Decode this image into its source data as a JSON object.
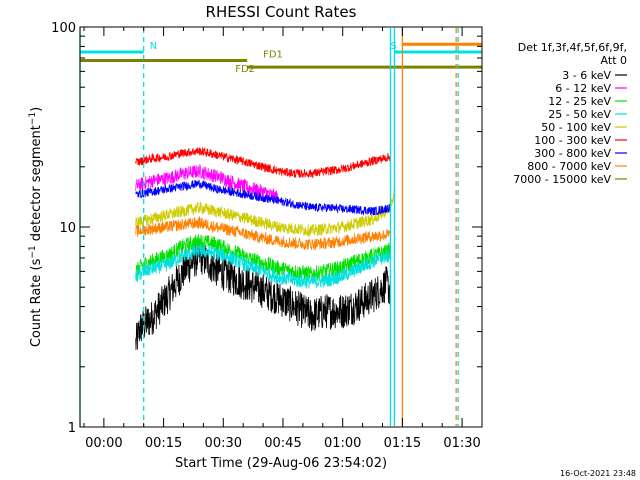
{
  "chart_data": {
    "type": "line",
    "title": "RHESSI Count Rates",
    "xlabel": "Start Time (29-Aug-06 23:54:02)",
    "ylabel": "Count Rate (s",
    "ylabel_sup": "−1",
    "ylabel_tail": " detector segment",
    "ylabel_sup2": "−1",
    "ylabel_end": ")",
    "yscale": "log",
    "ylim": [
      1,
      100
    ],
    "y_ticks": [
      {
        "v": 1,
        "label": "1"
      },
      {
        "v": 10,
        "label": "10"
      },
      {
        "v": 100,
        "label": "100"
      }
    ],
    "xlim_min": [
      -6,
      95
    ],
    "x_ticks": [
      {
        "m": 0,
        "label": "00:00"
      },
      {
        "m": 15,
        "label": "00:15"
      },
      {
        "m": 30,
        "label": "00:30"
      },
      {
        "m": 45,
        "label": "00:45"
      },
      {
        "m": 60,
        "label": "01:00"
      },
      {
        "m": 75,
        "label": "01:15"
      },
      {
        "m": 90,
        "label": "01:30"
      }
    ],
    "legend_header": [
      "Det 1f,3f,4f,5f,6f,9f,",
      "Att 0"
    ],
    "series": [
      {
        "name": "3 - 6 keV",
        "color": "#000000",
        "noise": 0.09,
        "points": [
          [
            8,
            2.6
          ],
          [
            9,
            3.1
          ],
          [
            12,
            3.5
          ],
          [
            16,
            4.5
          ],
          [
            20,
            6.0
          ],
          [
            24,
            7.2
          ],
          [
            28,
            6.2
          ],
          [
            32,
            5.6
          ],
          [
            36,
            5.2
          ],
          [
            40,
            4.8
          ],
          [
            44,
            4.4
          ],
          [
            48,
            4.0
          ],
          [
            52,
            3.6
          ],
          [
            56,
            3.8
          ],
          [
            60,
            3.8
          ],
          [
            64,
            4.1
          ],
          [
            68,
            4.6
          ],
          [
            71,
            5.2
          ],
          [
            72,
            4.8
          ]
        ]
      },
      {
        "name": "6 - 12 keV",
        "color": "#ff00ff",
        "noise": 0.035,
        "points": [
          [
            8,
            16
          ],
          [
            12,
            17
          ],
          [
            16,
            17.5
          ],
          [
            20,
            18.5
          ],
          [
            24,
            19
          ],
          [
            28,
            18
          ],
          [
            30,
            17.5
          ],
          [
            35,
            16
          ],
          [
            40,
            15
          ],
          [
            44,
            14
          ]
        ]
      },
      {
        "name": "12 - 25 keV",
        "color": "#00e000",
        "noise": 0.04,
        "points": [
          [
            8,
            6.0
          ],
          [
            10,
            6.5
          ],
          [
            16,
            7.2
          ],
          [
            20,
            8.0
          ],
          [
            24,
            8.5
          ],
          [
            28,
            8.2
          ],
          [
            32,
            7.6
          ],
          [
            36,
            7.0
          ],
          [
            40,
            6.6
          ],
          [
            44,
            6.2
          ],
          [
            48,
            6.0
          ],
          [
            52,
            5.8
          ],
          [
            56,
            6.0
          ],
          [
            60,
            6.3
          ],
          [
            64,
            6.8
          ],
          [
            68,
            7.2
          ],
          [
            72,
            7.6
          ]
        ]
      },
      {
        "name": "25 - 50 keV",
        "color": "#00e0e0",
        "noise": 0.035,
        "points": [
          [
            8,
            5.6
          ],
          [
            10,
            6.0
          ],
          [
            16,
            6.5
          ],
          [
            20,
            7.2
          ],
          [
            24,
            7.6
          ],
          [
            28,
            7.4
          ],
          [
            32,
            7.0
          ],
          [
            36,
            6.4
          ],
          [
            40,
            6.0
          ],
          [
            44,
            5.6
          ],
          [
            48,
            5.4
          ],
          [
            52,
            5.3
          ],
          [
            56,
            5.4
          ],
          [
            60,
            5.7
          ],
          [
            64,
            6.2
          ],
          [
            68,
            6.8
          ],
          [
            72,
            7.2
          ]
        ]
      },
      {
        "name": "50 - 100 keV",
        "color": "#cccc00",
        "noise": 0.03,
        "points": [
          [
            8,
            10.5
          ],
          [
            12,
            11
          ],
          [
            16,
            11.5
          ],
          [
            20,
            12
          ],
          [
            24,
            12.5
          ],
          [
            28,
            12
          ],
          [
            32,
            11.5
          ],
          [
            36,
            11
          ],
          [
            40,
            10.5
          ],
          [
            44,
            10
          ],
          [
            48,
            9.8
          ],
          [
            52,
            9.6
          ],
          [
            56,
            9.8
          ],
          [
            60,
            10
          ],
          [
            64,
            10.5
          ],
          [
            68,
            11
          ],
          [
            72,
            12.5
          ],
          [
            73,
            15
          ]
        ]
      },
      {
        "name": "100 - 300 keV",
        "color": "#ff0000",
        "noise": 0.022,
        "points": [
          [
            8,
            21
          ],
          [
            12,
            22
          ],
          [
            16,
            22.5
          ],
          [
            20,
            23.5
          ],
          [
            24,
            24
          ],
          [
            28,
            23
          ],
          [
            32,
            22
          ],
          [
            36,
            21
          ],
          [
            40,
            20
          ],
          [
            44,
            19
          ],
          [
            48,
            18.5
          ],
          [
            52,
            18.5
          ],
          [
            56,
            19
          ],
          [
            60,
            19.5
          ],
          [
            64,
            20.5
          ],
          [
            68,
            21.5
          ],
          [
            72,
            22.5
          ]
        ]
      },
      {
        "name": "300 - 800 keV",
        "color": "#0000ff",
        "noise": 0.022,
        "points": [
          [
            8,
            14.5
          ],
          [
            12,
            15
          ],
          [
            16,
            15.5
          ],
          [
            20,
            16
          ],
          [
            24,
            16.5
          ],
          [
            28,
            15.5
          ],
          [
            32,
            15
          ],
          [
            36,
            14.5
          ],
          [
            40,
            14
          ],
          [
            44,
            13.5
          ],
          [
            48,
            13
          ],
          [
            52,
            12.5
          ],
          [
            56,
            12.5
          ],
          [
            60,
            12.3
          ],
          [
            64,
            12.2
          ],
          [
            68,
            12
          ],
          [
            72,
            12.5
          ]
        ]
      },
      {
        "name": "800 - 7000 keV",
        "color": "#ff8000",
        "noise": 0.03,
        "points": [
          [
            8,
            9.5
          ],
          [
            12,
            9.8
          ],
          [
            16,
            10
          ],
          [
            20,
            10.3
          ],
          [
            24,
            10.5
          ],
          [
            28,
            10
          ],
          [
            32,
            9.6
          ],
          [
            36,
            9.2
          ],
          [
            40,
            8.8
          ],
          [
            44,
            8.5
          ],
          [
            48,
            8.3
          ],
          [
            52,
            8.2
          ],
          [
            56,
            8.3
          ],
          [
            60,
            8.5
          ],
          [
            64,
            8.8
          ],
          [
            68,
            9.0
          ],
          [
            72,
            9.2
          ]
        ]
      },
      {
        "name": "7000 - 15000 keV",
        "color": "#808000",
        "noise": 0.0,
        "points": []
      }
    ],
    "attenuator_lines": [
      {
        "m": -6,
        "color": "#00e0e0"
      },
      {
        "m": 10,
        "color": "#00e0e0"
      },
      {
        "m": 72,
        "color": "#00e0e0"
      },
      {
        "m": 73,
        "color": "#00e0e0"
      },
      {
        "m": 75,
        "color": "#ff8000"
      },
      {
        "m": 88.5,
        "color": "#ff8000"
      },
      {
        "m": 89,
        "color": "#00e0e0"
      }
    ],
    "flag_bars": [
      {
        "label": "N",
        "color": "#00e0e0",
        "y": 75,
        "x0": -6,
        "x1": 10,
        "label_m": 11.5
      },
      {
        "label": "FD1",
        "color": "#808000",
        "y": 68,
        "x0": -6,
        "x1": 36,
        "label_m": 40
      },
      {
        "label": "FD2",
        "color": "#808000",
        "y": 63,
        "x0": 36,
        "x1": 95,
        "label_m": 33
      },
      {
        "label": "S",
        "color": "#00e0e0",
        "y": 75,
        "x0": 73,
        "x1": 95,
        "label_m": 72
      },
      {
        "label": "",
        "color": "#ff8000",
        "y": 82,
        "x0": 75,
        "x1": 95,
        "label_m": 0
      }
    ]
  },
  "timestamp": "16-Oct-2021 23:48"
}
